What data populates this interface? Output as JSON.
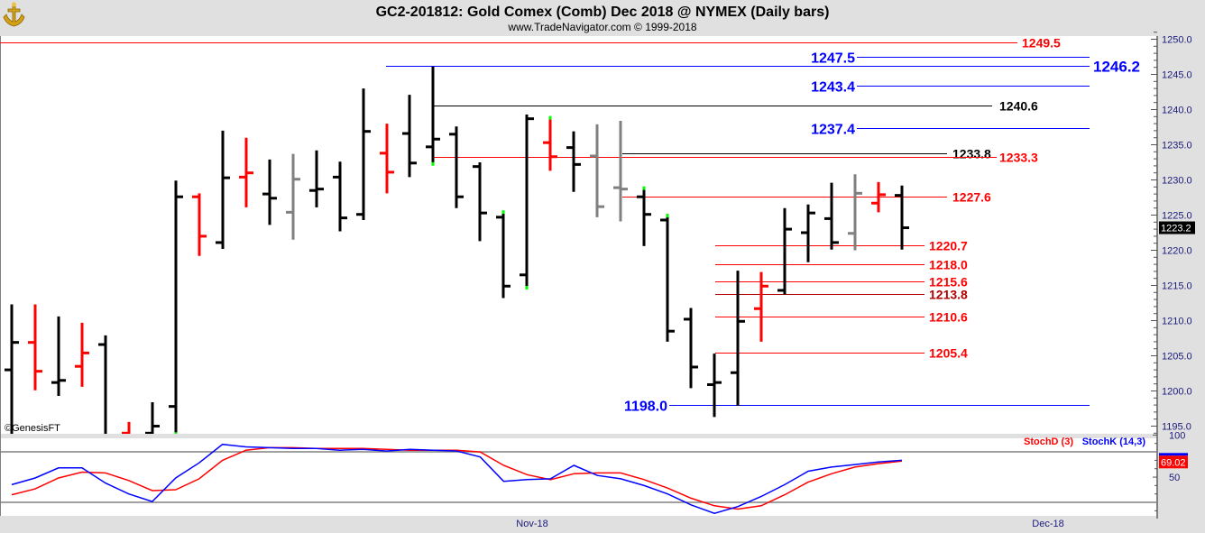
{
  "header": {
    "title": "GC2-201812:  Gold Comex (Comb) Dec 2018 @ NYMEX  (Daily bars)",
    "subtitle": "www.TradeNavigator.com © 1999-2018",
    "logo_icon": "gold-anchor-logo-icon"
  },
  "watermark": "©GenesisFT",
  "colors": {
    "up": "#000000",
    "down": "#ff0000",
    "neutral": "#808080",
    "marker": "#00ff00",
    "stoch_k": "#0000ff",
    "stoch_d": "#ff0000"
  },
  "chart_data": [
    {
      "type": "ohlc",
      "title": "GC2-201812:  Gold Comex (Comb) Dec 2018 @ NYMEX  (Daily bars)",
      "ylim": [
        1194,
        1251
      ],
      "y_ticks": [
        "1250.0",
        "1245.0",
        "1240.0",
        "1235.0",
        "1230.0",
        "1225.0",
        "1220.0",
        "1215.0",
        "1210.0",
        "1205.0",
        "1200.0",
        "1195.0"
      ],
      "x_ticks": [
        "Nov-18",
        "Dec-18"
      ],
      "last_price_label": "1223.2",
      "bars": [
        {
          "o": 1203.0,
          "h": 1212.3,
          "l": 1190.0,
          "c": 1206.9,
          "color": "up"
        },
        {
          "o": 1206.9,
          "h": 1212.3,
          "l": 1200.1,
          "c": 1202.8,
          "color": "down"
        },
        {
          "o": 1201.2,
          "h": 1210.6,
          "l": 1199.3,
          "c": 1201.5,
          "color": "up"
        },
        {
          "o": 1203.5,
          "h": 1209.7,
          "l": 1200.6,
          "c": 1205.4,
          "color": "down"
        },
        {
          "o": 1206.6,
          "h": 1207.9,
          "l": 1190.0,
          "c": 1193.0,
          "color": "up"
        },
        {
          "o": 1194.0,
          "h": 1195.6,
          "l": 1190.0,
          "c": 1192.0,
          "color": "down"
        },
        {
          "o": 1194.0,
          "h": 1198.4,
          "l": 1190.0,
          "c": 1195.0,
          "color": "up"
        },
        {
          "o": 1197.8,
          "h": 1229.9,
          "l": 1194.0,
          "c": 1227.6,
          "color": "up",
          "marker": "low"
        },
        {
          "o": 1227.6,
          "h": 1228.1,
          "l": 1219.2,
          "c": 1222.0,
          "color": "down"
        },
        {
          "o": 1221.1,
          "h": 1237.0,
          "l": 1220.2,
          "c": 1230.3,
          "color": "up"
        },
        {
          "o": 1230.4,
          "h": 1236.0,
          "l": 1226.1,
          "c": 1231.0,
          "color": "down"
        },
        {
          "o": 1228.0,
          "h": 1232.9,
          "l": 1223.6,
          "c": 1227.4,
          "color": "up"
        },
        {
          "o": 1225.4,
          "h": 1233.7,
          "l": 1221.5,
          "c": 1230.1,
          "color": "neutral"
        },
        {
          "o": 1228.5,
          "h": 1234.2,
          "l": 1226.1,
          "c": 1228.7,
          "color": "up"
        },
        {
          "o": 1230.4,
          "h": 1232.6,
          "l": 1222.7,
          "c": 1224.6,
          "color": "up"
        },
        {
          "o": 1225.1,
          "h": 1243.0,
          "l": 1224.3,
          "c": 1236.9,
          "color": "up"
        },
        {
          "o": 1233.8,
          "h": 1238.0,
          "l": 1228.1,
          "c": 1231.1,
          "color": "down"
        },
        {
          "o": 1236.6,
          "h": 1242.1,
          "l": 1230.4,
          "c": 1232.4,
          "color": "up"
        },
        {
          "o": 1234.7,
          "h": 1246.1,
          "l": 1232.4,
          "c": 1235.8,
          "color": "up",
          "marker": "low"
        },
        {
          "o": 1236.5,
          "h": 1237.6,
          "l": 1226.0,
          "c": 1227.6,
          "color": "up"
        },
        {
          "o": 1231.9,
          "h": 1232.5,
          "l": 1221.3,
          "c": 1225.3,
          "color": "up"
        },
        {
          "o": 1224.7,
          "h": 1225.3,
          "l": 1213.2,
          "c": 1214.9,
          "color": "up",
          "marker": "high"
        },
        {
          "o": 1216.5,
          "h": 1239.3,
          "l": 1214.8,
          "c": 1238.7,
          "color": "up",
          "marker": "low"
        },
        {
          "o": 1235.3,
          "h": 1238.7,
          "l": 1231.3,
          "c": 1233.3,
          "color": "down",
          "marker": "high"
        },
        {
          "o": 1234.6,
          "h": 1236.9,
          "l": 1228.3,
          "c": 1232.2,
          "color": "up"
        },
        {
          "o": 1233.4,
          "h": 1237.9,
          "l": 1224.7,
          "c": 1226.2,
          "color": "neutral"
        },
        {
          "o": 1228.9,
          "h": 1238.4,
          "l": 1224.1,
          "c": 1228.7,
          "color": "neutral"
        },
        {
          "o": 1227.6,
          "h": 1228.7,
          "l": 1220.6,
          "c": 1225.1,
          "color": "up",
          "marker": "high"
        },
        {
          "o": 1224.3,
          "h": 1224.8,
          "l": 1207.0,
          "c": 1208.5,
          "color": "up",
          "marker": "high"
        },
        {
          "o": 1210.2,
          "h": 1211.8,
          "l": 1200.4,
          "c": 1203.4,
          "color": "up"
        },
        {
          "o": 1200.9,
          "h": 1205.3,
          "l": 1196.3,
          "c": 1201.2,
          "color": "up"
        },
        {
          "o": 1202.6,
          "h": 1217.1,
          "l": 1197.9,
          "c": 1209.9,
          "color": "up"
        },
        {
          "o": 1211.7,
          "h": 1216.9,
          "l": 1207.0,
          "c": 1214.9,
          "color": "down"
        },
        {
          "o": 1214.3,
          "h": 1226.0,
          "l": 1213.7,
          "c": 1223.0,
          "color": "up"
        },
        {
          "o": 1222.5,
          "h": 1226.5,
          "l": 1218.3,
          "c": 1225.3,
          "color": "up"
        },
        {
          "o": 1224.5,
          "h": 1229.6,
          "l": 1220.1,
          "c": 1221.1,
          "color": "up"
        },
        {
          "o": 1222.4,
          "h": 1230.8,
          "l": 1220.0,
          "c": 1228.1,
          "color": "neutral"
        },
        {
          "o": 1226.7,
          "h": 1229.7,
          "l": 1225.4,
          "c": 1227.9,
          "color": "down"
        },
        {
          "o": 1227.8,
          "h": 1229.2,
          "l": 1220.1,
          "c": 1223.2,
          "color": "up"
        }
      ],
      "levels": [
        {
          "price": 1249.5,
          "label": "1249.5",
          "color": "#ff0000"
        },
        {
          "price": 1247.5,
          "label": "1247.5",
          "color": "#0000ff"
        },
        {
          "price": 1246.2,
          "label": "1246.2",
          "color": "#0000ff"
        },
        {
          "price": 1243.4,
          "label": "1243.4",
          "color": "#0000ff"
        },
        {
          "price": 1240.6,
          "label": "1240.6",
          "color": "#000000"
        },
        {
          "price": 1237.4,
          "label": "1237.4",
          "color": "#0000ff"
        },
        {
          "price": 1233.8,
          "label": "1233.8",
          "color": "#000000"
        },
        {
          "price": 1233.3,
          "label": "1233.3",
          "color": "#ff0000"
        },
        {
          "price": 1227.6,
          "label": "1227.6",
          "color": "#ff0000"
        },
        {
          "price": 1220.7,
          "label": "1220.7",
          "color": "#ff0000"
        },
        {
          "price": 1218.0,
          "label": "1218.0",
          "color": "#ff0000"
        },
        {
          "price": 1215.6,
          "label": "1215.6",
          "color": "#ff0000"
        },
        {
          "price": 1213.8,
          "label": "1213.8",
          "color": "#b00000"
        },
        {
          "price": 1210.6,
          "label": "1210.6",
          "color": "#ff0000"
        },
        {
          "price": 1205.4,
          "label": "1205.4",
          "color": "#ff0000"
        },
        {
          "price": 1198.0,
          "label": "1198.0",
          "color": "#0000ff"
        }
      ]
    },
    {
      "type": "line",
      "ylim": [
        0,
        100
      ],
      "y_ticks": [
        "100",
        "50"
      ],
      "reference_lines": [
        80,
        20
      ],
      "last_value_label": "69.02",
      "series": [
        {
          "name": "StochD (3)",
          "color": "#ff0000",
          "values": [
            29,
            36,
            49,
            56,
            55,
            46,
            34,
            35,
            48,
            70,
            82,
            85,
            85,
            84,
            84,
            84,
            83,
            82,
            82,
            82,
            80,
            64,
            53,
            47,
            54,
            55,
            55,
            47,
            37,
            25,
            16,
            12,
            16,
            29,
            44,
            54,
            62,
            66,
            69
          ]
        },
        {
          "name": "StochK (14,3)",
          "color": "#0000ff",
          "values": [
            41,
            49,
            61,
            61,
            43,
            30,
            21,
            49,
            67,
            89,
            86,
            85,
            84,
            84,
            82,
            83,
            81,
            83,
            82,
            81,
            74,
            45,
            47,
            48,
            64,
            52,
            48,
            40,
            30,
            17,
            7,
            15,
            27,
            41,
            57,
            62,
            65,
            68,
            70
          ]
        }
      ]
    }
  ]
}
